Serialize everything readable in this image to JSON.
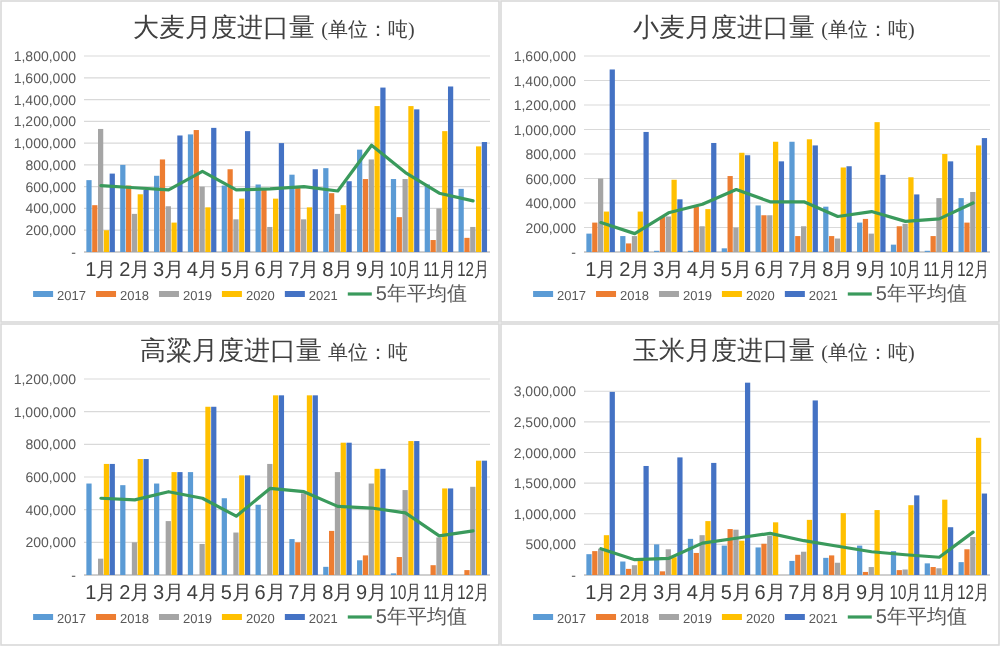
{
  "chart_data": [
    {
      "type": "bar",
      "title": "大麦月度进口量",
      "subtitle": "(单位：吨)",
      "categories": [
        "1月",
        "2月",
        "3月",
        "4月",
        "5月",
        "6月",
        "7月",
        "8月",
        "9月",
        "10月",
        "11月",
        "12月"
      ],
      "ylim": [
        0,
        1800000
      ],
      "yticks": [
        {
          "value": 0,
          "label": "-"
        },
        {
          "value": 200000,
          "label": "200,000"
        },
        {
          "value": 400000,
          "label": "400,000"
        },
        {
          "value": 600000,
          "label": "600,000"
        },
        {
          "value": 800000,
          "label": "800,000"
        },
        {
          "value": 1000000,
          "label": "1,000,000"
        },
        {
          "value": 1200000,
          "label": "1,200,000"
        },
        {
          "value": 1400000,
          "label": "1,400,000"
        },
        {
          "value": 1600000,
          "label": "1,600,000"
        },
        {
          "value": 1800000,
          "label": "1,800,000"
        }
      ],
      "grid": "y",
      "legend": "bottom",
      "series": [
        {
          "name": "2017",
          "color": "#5b9bd5",
          "values": [
            660000,
            800000,
            700000,
            1080000,
            610000,
            620000,
            710000,
            770000,
            940000,
            670000,
            620000,
            580000
          ]
        },
        {
          "name": "2018",
          "color": "#ed7d31",
          "values": [
            430000,
            610000,
            850000,
            1120000,
            760000,
            580000,
            590000,
            540000,
            670000,
            320000,
            110000,
            130000
          ]
        },
        {
          "name": "2019",
          "color": "#a5a5a5",
          "values": [
            1130000,
            350000,
            420000,
            600000,
            300000,
            230000,
            300000,
            350000,
            850000,
            670000,
            400000,
            230000
          ]
        },
        {
          "name": "2020",
          "color": "#ffc000",
          "values": [
            200000,
            530000,
            270000,
            410000,
            490000,
            490000,
            410000,
            430000,
            1340000,
            1340000,
            1110000,
            970000
          ]
        },
        {
          "name": "2021",
          "color": "#4472c4",
          "values": [
            720000,
            570000,
            1070000,
            1140000,
            1110000,
            1000000,
            760000,
            650000,
            1510000,
            1310000,
            1520000,
            1010000
          ]
        },
        {
          "name": "5年平均值",
          "type": "line",
          "color": "#3a9a5c",
          "values": [
            610000,
            590000,
            570000,
            740000,
            570000,
            580000,
            600000,
            560000,
            980000,
            730000,
            540000,
            470000
          ]
        }
      ]
    },
    {
      "type": "bar",
      "title": "小麦月度进口量",
      "subtitle": "(单位：吨)",
      "categories": [
        "1月",
        "2月",
        "3月",
        "4月",
        "5月",
        "6月",
        "7月",
        "8月",
        "9月",
        "10月",
        "11月",
        "12月"
      ],
      "ylim": [
        0,
        1600000
      ],
      "yticks": [
        {
          "value": 0,
          "label": "-"
        },
        {
          "value": 200000,
          "label": "200,000"
        },
        {
          "value": 400000,
          "label": "400,000"
        },
        {
          "value": 600000,
          "label": "600,000"
        },
        {
          "value": 800000,
          "label": "800,000"
        },
        {
          "value": 1000000,
          "label": "1,000,000"
        },
        {
          "value": 1200000,
          "label": "1,200,000"
        },
        {
          "value": 1400000,
          "label": "1,400,000"
        },
        {
          "value": 1600000,
          "label": "1,600,000"
        }
      ],
      "grid": "y",
      "legend": "bottom",
      "series": [
        {
          "name": "2017",
          "color": "#5b9bd5",
          "values": [
            150000,
            130000,
            10000,
            10000,
            30000,
            380000,
            900000,
            370000,
            240000,
            60000,
            10000,
            440000
          ]
        },
        {
          "name": "2018",
          "color": "#ed7d31",
          "values": [
            240000,
            70000,
            290000,
            370000,
            620000,
            300000,
            130000,
            130000,
            270000,
            210000,
            130000,
            240000
          ]
        },
        {
          "name": "2019",
          "color": "#a5a5a5",
          "values": [
            600000,
            130000,
            290000,
            210000,
            200000,
            300000,
            210000,
            110000,
            150000,
            230000,
            440000,
            490000
          ]
        },
        {
          "name": "2020",
          "color": "#ffc000",
          "values": [
            330000,
            330000,
            590000,
            350000,
            810000,
            900000,
            920000,
            690000,
            1060000,
            610000,
            800000,
            870000
          ]
        },
        {
          "name": "2021",
          "color": "#4472c4",
          "values": [
            1490000,
            980000,
            430000,
            890000,
            790000,
            740000,
            870000,
            700000,
            630000,
            470000,
            740000,
            930000
          ]
        },
        {
          "name": "5年平均值",
          "type": "line",
          "color": "#3a9a5c",
          "values": [
            240000,
            150000,
            320000,
            390000,
            510000,
            410000,
            410000,
            290000,
            330000,
            250000,
            270000,
            400000
          ]
        }
      ]
    },
    {
      "type": "bar",
      "title": "高粱月度进口量",
      "subtitle": "单位：吨",
      "categories": [
        "1月",
        "2月",
        "3月",
        "4月",
        "5月",
        "6月",
        "7月",
        "8月",
        "9月",
        "10月",
        "11月",
        "12月"
      ],
      "ylim": [
        0,
        1200000
      ],
      "yticks": [
        {
          "value": 0,
          "label": "-"
        },
        {
          "value": 200000,
          "label": "200,000"
        },
        {
          "value": 400000,
          "label": "400,000"
        },
        {
          "value": 600000,
          "label": "600,000"
        },
        {
          "value": 800000,
          "label": "800,000"
        },
        {
          "value": 1000000,
          "label": "1,000,000"
        },
        {
          "value": 1200000,
          "label": "1,200,000"
        }
      ],
      "grid": "y",
      "legend": "bottom",
      "series": [
        {
          "name": "2017",
          "color": "#5b9bd5",
          "values": [
            560000,
            550000,
            560000,
            630000,
            470000,
            430000,
            220000,
            50000,
            90000,
            10000,
            0,
            0
          ]
        },
        {
          "name": "2018",
          "color": "#ed7d31",
          "values": [
            0,
            0,
            0,
            0,
            0,
            0,
            200000,
            270000,
            120000,
            110000,
            60000,
            30000
          ]
        },
        {
          "name": "2019",
          "color": "#a5a5a5",
          "values": [
            100000,
            200000,
            330000,
            190000,
            260000,
            680000,
            500000,
            630000,
            560000,
            520000,
            230000,
            540000
          ]
        },
        {
          "name": "2020",
          "color": "#ffc000",
          "values": [
            680000,
            710000,
            630000,
            1030000,
            610000,
            1100000,
            1100000,
            810000,
            650000,
            820000,
            530000,
            700000
          ]
        },
        {
          "name": "2021",
          "color": "#4472c4",
          "values": [
            680000,
            710000,
            630000,
            1030000,
            610000,
            1100000,
            1100000,
            810000,
            650000,
            820000,
            530000,
            700000
          ]
        },
        {
          "name": "5年平均值",
          "type": "line",
          "color": "#3a9a5c",
          "values": [
            470000,
            460000,
            510000,
            470000,
            360000,
            530000,
            510000,
            420000,
            410000,
            380000,
            240000,
            270000
          ]
        }
      ]
    },
    {
      "type": "bar",
      "title": "玉米月度进口量",
      "subtitle": "(单位：吨)",
      "categories": [
        "1月",
        "2月",
        "3月",
        "4月",
        "5月",
        "6月",
        "7月",
        "8月",
        "9月",
        "10月",
        "11月",
        "12月"
      ],
      "ylim": [
        0,
        3200000
      ],
      "yticks": [
        {
          "value": 0,
          "label": "-"
        },
        {
          "value": 500000,
          "label": "500,000"
        },
        {
          "value": 1000000,
          "label": "1,000,000"
        },
        {
          "value": 1500000,
          "label": "1,500,000"
        },
        {
          "value": 2000000,
          "label": "2,000,000"
        },
        {
          "value": 2500000,
          "label": "2,500,000"
        },
        {
          "value": 3000000,
          "label": "3,000,000"
        }
      ],
      "grid": "y",
      "legend": "bottom",
      "series": [
        {
          "name": "2017",
          "color": "#5b9bd5",
          "values": [
            340000,
            220000,
            500000,
            590000,
            480000,
            450000,
            230000,
            280000,
            480000,
            390000,
            190000,
            210000
          ]
        },
        {
          "name": "2018",
          "color": "#ed7d31",
          "values": [
            390000,
            100000,
            60000,
            360000,
            750000,
            510000,
            330000,
            320000,
            50000,
            80000,
            130000,
            420000
          ]
        },
        {
          "name": "2019",
          "color": "#a5a5a5",
          "values": [
            430000,
            160000,
            420000,
            650000,
            740000,
            640000,
            380000,
            200000,
            130000,
            90000,
            110000,
            620000
          ]
        },
        {
          "name": "2020",
          "color": "#ffc000",
          "values": [
            650000,
            250000,
            290000,
            880000,
            560000,
            860000,
            900000,
            1010000,
            1060000,
            1140000,
            1230000,
            2240000
          ]
        },
        {
          "name": "2021",
          "color": "#4472c4",
          "values": [
            2990000,
            1780000,
            1920000,
            1830000,
            3140000,
            null,
            2850000,
            null,
            null,
            1300000,
            780000,
            1330000
          ]
        },
        {
          "name": "5年平均值",
          "type": "line",
          "color": "#3a9a5c",
          "values": [
            430000,
            250000,
            270000,
            520000,
            600000,
            680000,
            560000,
            470000,
            380000,
            330000,
            290000,
            700000
          ]
        }
      ]
    }
  ]
}
